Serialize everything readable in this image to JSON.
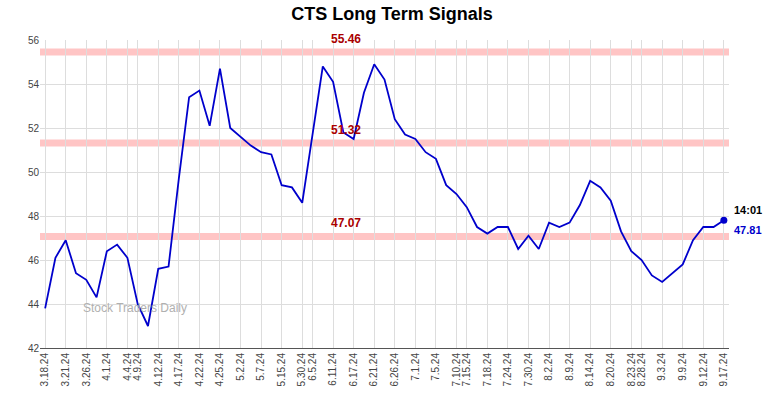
{
  "chart_data": {
    "type": "line",
    "title": "CTS Long Term Signals",
    "categories": [
      "3.18.24",
      null,
      "3.21.24",
      null,
      "3.26.24",
      null,
      "4.1.24",
      null,
      "4.4.24",
      "4.9.24",
      null,
      "4.12.24",
      null,
      "4.17.24",
      null,
      "4.22.24",
      null,
      "4.25.24",
      null,
      "5.2.24",
      null,
      "5.7.24",
      null,
      "5.15.24",
      null,
      "5.30.24",
      "6.5.24",
      null,
      "6.11.24",
      null,
      "6.17.24",
      null,
      "6.21.24",
      null,
      "6.26.24",
      null,
      "7.1.24",
      null,
      "7.5.24",
      null,
      "7.10.24",
      "7.15.24",
      null,
      "7.18.24",
      null,
      "7.24.24",
      null,
      "7.30.24",
      null,
      "8.2.24",
      null,
      "8.9.24",
      null,
      "8.14.24",
      null,
      "8.20.24",
      null,
      "8.23.24",
      "8.28.24",
      null,
      "9.3.24",
      null,
      "9.9.24",
      null,
      "9.12.24",
      null,
      "9.17.24"
    ],
    "values": [
      43.8,
      46.1,
      46.9,
      45.4,
      45.1,
      44.3,
      46.4,
      46.7,
      46.1,
      44.0,
      43.0,
      45.6,
      45.7,
      49.7,
      53.4,
      53.7,
      52.1,
      54.7,
      52.0,
      51.6,
      51.2,
      50.9,
      50.8,
      49.4,
      49.3,
      48.6,
      51.8,
      54.8,
      54.1,
      51.8,
      51.5,
      53.6,
      54.9,
      54.2,
      52.4,
      51.7,
      51.5,
      50.9,
      50.6,
      49.4,
      49.0,
      48.4,
      47.5,
      47.2,
      47.5,
      47.5,
      46.5,
      47.1,
      46.5,
      47.7,
      47.5,
      47.7,
      48.5,
      49.6,
      49.3,
      48.7,
      47.3,
      46.4,
      46.0,
      45.3,
      45.0,
      45.4,
      45.8,
      46.9,
      47.5,
      47.5,
      47.81
    ],
    "color": "#0000cc",
    "ylim": [
      42,
      56
    ],
    "yticks": [
      42,
      44,
      46,
      48,
      50,
      52,
      54,
      56
    ],
    "grid": true,
    "hlines": [
      {
        "y": 55.46,
        "label": "55.46",
        "color": "#aa0000",
        "line_color": "#ffbbbb"
      },
      {
        "y": 51.32,
        "label": "51.32",
        "color": "#aa0000",
        "line_color": "#ffbbbb"
      },
      {
        "y": 47.07,
        "label": "47.07",
        "color": "#aa0000",
        "line_color": "#ffbbbb"
      }
    ],
    "watermark": {
      "text": "Stock Traders Daily",
      "color": "#b0b0b0"
    },
    "last_labels": [
      {
        "text": "14:01",
        "color": "#000000"
      },
      {
        "text": "47.81",
        "color": "#0000cc"
      }
    ]
  }
}
